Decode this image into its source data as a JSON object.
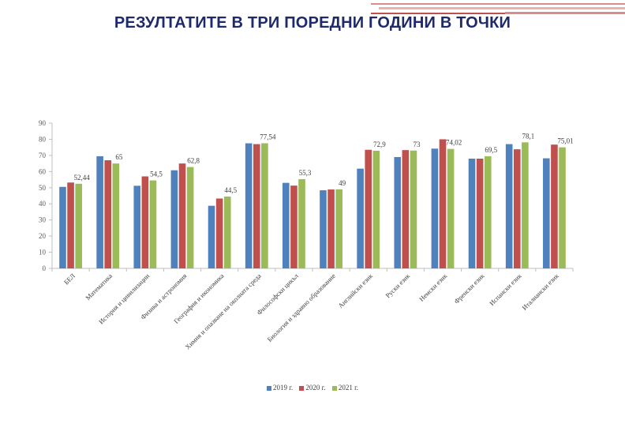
{
  "slide": {
    "title": "РЕЗУЛТАТИТЕ В ТРИ ПОРЕДНИ ГОДИНИ В ТОЧКИ"
  },
  "colors": {
    "title": "#1f2a6b",
    "accent": "#c0504d"
  },
  "chart_data": {
    "type": "bar",
    "title": "",
    "xlabel": "",
    "ylabel": "",
    "ylim": [
      0,
      90
    ],
    "yticks": [
      0,
      10,
      20,
      30,
      40,
      50,
      60,
      70,
      80,
      90
    ],
    "grid": false,
    "legend_position": "bottom",
    "categories": [
      "БЕЛ",
      "Математика",
      "История и цивилизации",
      "Физика и астрономия",
      "География и икономика",
      "Химия и опазване на околната среда",
      "Философски цикъл",
      "Биология и здравно образование",
      "Английски език",
      "Руски език",
      "Немски език",
      "Френски език",
      "Испански език",
      "Италиански език"
    ],
    "series": [
      {
        "name": "2019 г.",
        "color": "#4f81bd",
        "values": [
          50.5,
          69.5,
          51.2,
          60.8,
          38.8,
          77.5,
          53.0,
          48.4,
          61.8,
          69.0,
          74.2,
          68.0,
          77.0,
          68.2
        ]
      },
      {
        "name": "2020 г.",
        "color": "#c0504d",
        "values": [
          53.2,
          67.0,
          57.0,
          65.0,
          43.3,
          77.0,
          51.3,
          48.9,
          73.5,
          73.3,
          80.0,
          68.0,
          73.8,
          76.7
        ]
      },
      {
        "name": "2021 г.",
        "color": "#9bbb59",
        "values": [
          52.44,
          65,
          54.5,
          62.8,
          44.5,
          77.54,
          55.3,
          49,
          72.9,
          73,
          74.02,
          69.5,
          78.1,
          75.01
        ],
        "labels": [
          "52,44",
          "65",
          "54,5",
          "62,8",
          "44,5",
          "77,54",
          "55,3",
          "49",
          "72,9",
          "73",
          "74,02",
          "69,5",
          "78,1",
          "75,01"
        ]
      }
    ]
  }
}
